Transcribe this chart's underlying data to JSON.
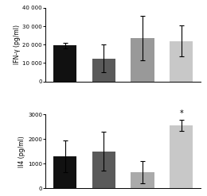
{
  "ifng_values": [
    19500,
    12500,
    23500,
    22000
  ],
  "ifng_errors": [
    1500,
    7500,
    12000,
    8500
  ],
  "il4_values": [
    1300,
    1500,
    650,
    2570
  ],
  "il4_errors": [
    650,
    800,
    450,
    230
  ],
  "bar_colors": [
    "#111111",
    "#5a5a5a",
    "#999999",
    "#c8c8c8"
  ],
  "il4_bar3_color": "#aaaaaa",
  "ifng_ylabel": "IFN-γ (pg/ml)",
  "il4_ylabel": "Il4 (pg/ml)",
  "ifng_ylim": [
    0,
    40000
  ],
  "ifng_yticks": [
    0,
    10000,
    20000,
    30000,
    40000
  ],
  "ifng_yticklabels": [
    "0",
    "10 000",
    "20 000",
    "30 000",
    "40 000"
  ],
  "il4_ylim": [
    0,
    3000
  ],
  "il4_yticks": [
    0,
    1000,
    2000,
    3000
  ],
  "il4_yticklabels": [
    "0",
    "1000",
    "2000",
    "3000"
  ],
  "star_bar_index": 3,
  "background_color": "#ffffff",
  "bar_width": 0.6,
  "bar_spacing": 1.0
}
